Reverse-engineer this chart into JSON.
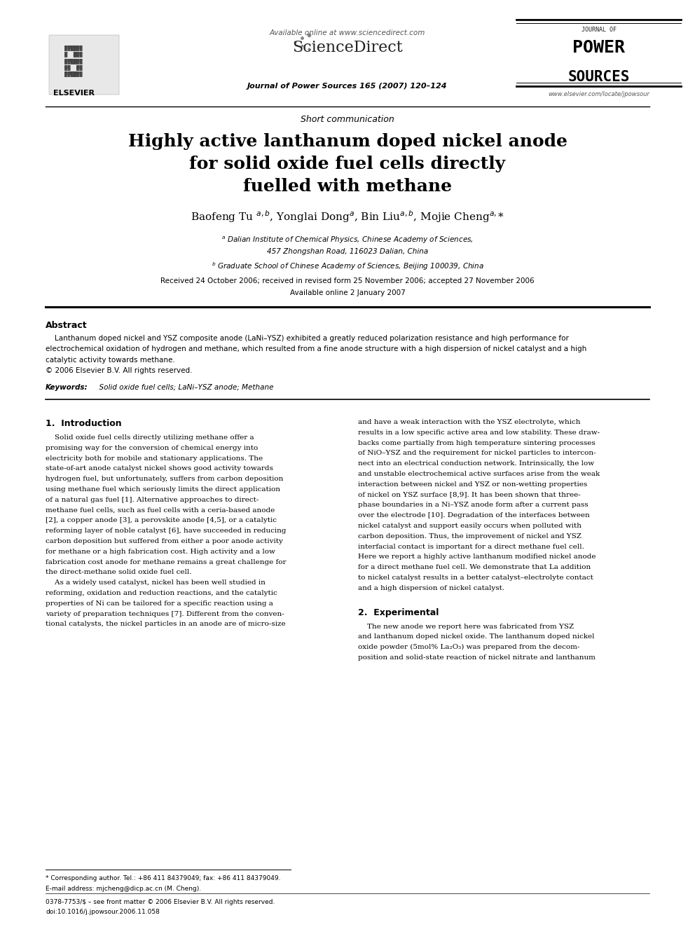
{
  "bg_color": "#ffffff",
  "page_width": 9.92,
  "page_height": 13.23,
  "header_available": "Available online at www.sciencedirect.com",
  "header_journal_line": "Journal of Power Sources 165 (2007) 120–124",
  "header_elsevier": "ELSEVIER",
  "header_journal_of": "JOURNAL OF",
  "header_power": "POWER",
  "header_sources": "SOURCES",
  "header_url": "www.elsevier.com/locate/jpowsour",
  "section_label": "Short communication",
  "title_line1": "Highly active lanthanum doped nickel anode",
  "title_line2": "for solid oxide fuel cells directly",
  "title_line3": "fuelled with methane",
  "author_line": "Baofeng Tu $^{a,b}$, Yonglai Dong$^{a}$, Bin Liu$^{a,b}$, Mojie Cheng$^{a,}$*",
  "affil_a": "$^{a}$ Dalian Institute of Chemical Physics, Chinese Academy of Sciences,",
  "affil_a2": "457 Zhongshan Road, 116023 Dalian, China",
  "affil_b": "$^{b}$ Graduate School of Chinese Academy of Sciences, Beijing 100039, China",
  "received": "Received 24 October 2006; received in revised form 25 November 2006; accepted 27 November 2006",
  "available_online": "Available online 2 January 2007",
  "abstract_title": "Abstract",
  "abstract_line1": "    Lanthanum doped nickel and YSZ composite anode (LaNi–YSZ) exhibited a greatly reduced polarization resistance and high performance for",
  "abstract_line2": "electrochemical oxidation of hydrogen and methane, which resulted from a fine anode structure with a high dispersion of nickel catalyst and a high",
  "abstract_line3": "catalytic activity towards methane.",
  "abstract_line4": "© 2006 Elsevier B.V. All rights reserved.",
  "keywords_label": "Keywords:",
  "keywords_text": "  Solid oxide fuel cells; LaNi–YSZ anode; Methane",
  "sec1_title": "1.  Introduction",
  "intro_col1_line01": "    Solid oxide fuel cells directly utilizing methane offer a",
  "intro_col1_line02": "promising way for the conversion of chemical energy into",
  "intro_col1_line03": "electricity both for mobile and stationary applications. The",
  "intro_col1_line04": "state-of-art anode catalyst nickel shows good activity towards",
  "intro_col1_line05": "hydrogen fuel, but unfortunately, suffers from carbon deposition",
  "intro_col1_line06": "using methane fuel which seriously limits the direct application",
  "intro_col1_line07": "of a natural gas fuel [1]. Alternative approaches to direct-",
  "intro_col1_line08": "methane fuel cells, such as fuel cells with a ceria-based anode",
  "intro_col1_line09": "[2], a copper anode [3], a perovskite anode [4,5], or a catalytic",
  "intro_col1_line10": "reforming layer of noble catalyst [6], have succeeded in reducing",
  "intro_col1_line11": "carbon deposition but suffered from either a poor anode activity",
  "intro_col1_line12": "for methane or a high fabrication cost. High activity and a low",
  "intro_col1_line13": "fabrication cost anode for methane remains a great challenge for",
  "intro_col1_line14": "the direct-methane solid oxide fuel cell.",
  "intro_col1_line15": "    As a widely used catalyst, nickel has been well studied in",
  "intro_col1_line16": "reforming, oxidation and reduction reactions, and the catalytic",
  "intro_col1_line17": "properties of Ni can be tailored for a specific reaction using a",
  "intro_col1_line18": "variety of preparation techniques [7]. Different from the conven-",
  "intro_col1_line19": "tional catalysts, the nickel particles in an anode are of micro-size",
  "intro_col2_line01": "and have a weak interaction with the YSZ electrolyte, which",
  "intro_col2_line02": "results in a low specific active area and low stability. These draw-",
  "intro_col2_line03": "backs come partially from high temperature sintering processes",
  "intro_col2_line04": "of NiO–YSZ and the requirement for nickel particles to intercon-",
  "intro_col2_line05": "nect into an electrical conduction network. Intrinsically, the low",
  "intro_col2_line06": "and unstable electrochemical active surfaces arise from the weak",
  "intro_col2_line07": "interaction between nickel and YSZ or non-wetting properties",
  "intro_col2_line08": "of nickel on YSZ surface [8,9]. It has been shown that three-",
  "intro_col2_line09": "phase boundaries in a Ni–YSZ anode form after a current pass",
  "intro_col2_line10": "over the electrode [10]. Degradation of the interfaces between",
  "intro_col2_line11": "nickel catalyst and support easily occurs when polluted with",
  "intro_col2_line12": "carbon deposition. Thus, the improvement of nickel and YSZ",
  "intro_col2_line13": "interfacial contact is important for a direct methane fuel cell.",
  "intro_col2_line14": "Here we report a highly active lanthanum modified nickel anode",
  "intro_col2_line15": "for a direct methane fuel cell. We demonstrate that La addition",
  "intro_col2_line16": "to nickel catalyst results in a better catalyst–electrolyte contact",
  "intro_col2_line17": "and a high dispersion of nickel catalyst.",
  "sec2_title": "2.  Experimental",
  "exp_col2_line01": "    The new anode we report here was fabricated from YSZ",
  "exp_col2_line02": "and lanthanum doped nickel oxide. The lanthanum doped nickel",
  "exp_col2_line03": "oxide powder (5mol% La₂O₃) was prepared from the decom-",
  "exp_col2_line04": "position and solid-state reaction of nickel nitrate and lanthanum",
  "footnote_star": "* Corresponding author. Tel.: +86 411 84379049; fax: +86 411 84379049.",
  "footnote_email": "E-mail address: mjcheng@dicp.ac.cn (M. Cheng).",
  "footnote_issn": "0378-7753/$ – see front matter © 2006 Elsevier B.V. All rights reserved.",
  "footnote_doi": "doi:10.1016/j.jpowsour.2006.11.058"
}
